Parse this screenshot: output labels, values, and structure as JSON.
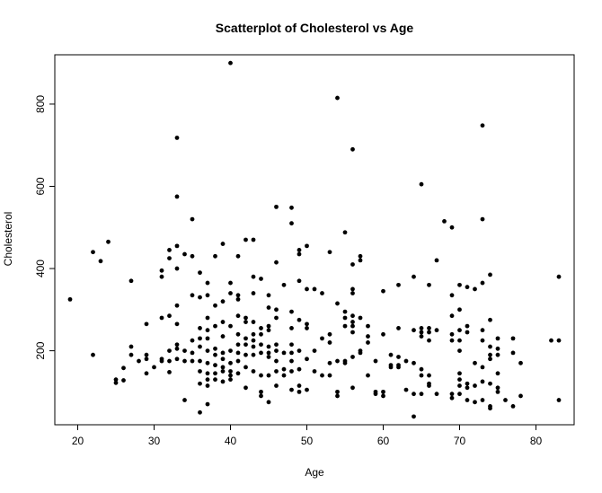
{
  "chart_data": {
    "type": "scatter",
    "title": "Scatterplot of Cholesterol vs Age",
    "xlabel": "Age",
    "ylabel": "Cholesterol",
    "xlim": [
      17,
      85
    ],
    "ylim": [
      20,
      920
    ],
    "xticks": [
      20,
      30,
      40,
      50,
      60,
      70,
      80
    ],
    "yticks": [
      200,
      400,
      600,
      800
    ],
    "grid": false,
    "legend": "none",
    "marker_color": "#000000",
    "points": [
      [
        19,
        325
      ],
      [
        22,
        440
      ],
      [
        22,
        190
      ],
      [
        23,
        418
      ],
      [
        24,
        465
      ],
      [
        25,
        130
      ],
      [
        25,
        122
      ],
      [
        26,
        128
      ],
      [
        26,
        158
      ],
      [
        27,
        370
      ],
      [
        27,
        210
      ],
      [
        27,
        190
      ],
      [
        28,
        175
      ],
      [
        29,
        145
      ],
      [
        29,
        180
      ],
      [
        29,
        265
      ],
      [
        29,
        190
      ],
      [
        30,
        160
      ],
      [
        31,
        395
      ],
      [
        31,
        380
      ],
      [
        31,
        280
      ],
      [
        31,
        180
      ],
      [
        31,
        175
      ],
      [
        32,
        445
      ],
      [
        32,
        425
      ],
      [
        32,
        285
      ],
      [
        32,
        200
      ],
      [
        32,
        175
      ],
      [
        32,
        148
      ],
      [
        33,
        718
      ],
      [
        33,
        575
      ],
      [
        33,
        455
      ],
      [
        33,
        400
      ],
      [
        33,
        310
      ],
      [
        33,
        265
      ],
      [
        33,
        215
      ],
      [
        33,
        205
      ],
      [
        33,
        180
      ],
      [
        34,
        435
      ],
      [
        34,
        200
      ],
      [
        34,
        175
      ],
      [
        34,
        80
      ],
      [
        35,
        520
      ],
      [
        35,
        430
      ],
      [
        35,
        335
      ],
      [
        35,
        225
      ],
      [
        35,
        195
      ],
      [
        35,
        175
      ],
      [
        36,
        390
      ],
      [
        36,
        330
      ],
      [
        36,
        255
      ],
      [
        36,
        230
      ],
      [
        36,
        210
      ],
      [
        36,
        175
      ],
      [
        36,
        150
      ],
      [
        36,
        120
      ],
      [
        36,
        50
      ],
      [
        37,
        365
      ],
      [
        37,
        335
      ],
      [
        37,
        280
      ],
      [
        37,
        250
      ],
      [
        37,
        230
      ],
      [
        37,
        200
      ],
      [
        37,
        170
      ],
      [
        37,
        145
      ],
      [
        37,
        130
      ],
      [
        37,
        115
      ],
      [
        37,
        70
      ],
      [
        38,
        430
      ],
      [
        38,
        310
      ],
      [
        38,
        260
      ],
      [
        38,
        205
      ],
      [
        38,
        190
      ],
      [
        38,
        165
      ],
      [
        38,
        145
      ],
      [
        38,
        130
      ],
      [
        39,
        460
      ],
      [
        39,
        320
      ],
      [
        39,
        270
      ],
      [
        39,
        235
      ],
      [
        39,
        195
      ],
      [
        39,
        180
      ],
      [
        39,
        160
      ],
      [
        39,
        150
      ],
      [
        39,
        125
      ],
      [
        40,
        900
      ],
      [
        40,
        365
      ],
      [
        40,
        340
      ],
      [
        40,
        260
      ],
      [
        40,
        200
      ],
      [
        40,
        170
      ],
      [
        40,
        150
      ],
      [
        40,
        140
      ],
      [
        40,
        130
      ],
      [
        41,
        430
      ],
      [
        41,
        335
      ],
      [
        41,
        325
      ],
      [
        41,
        285
      ],
      [
        41,
        240
      ],
      [
        41,
        215
      ],
      [
        41,
        195
      ],
      [
        41,
        175
      ],
      [
        41,
        145
      ],
      [
        42,
        470
      ],
      [
        42,
        280
      ],
      [
        42,
        270
      ],
      [
        42,
        230
      ],
      [
        42,
        215
      ],
      [
        42,
        190
      ],
      [
        42,
        160
      ],
      [
        42,
        110
      ],
      [
        43,
        470
      ],
      [
        43,
        380
      ],
      [
        43,
        340
      ],
      [
        43,
        270
      ],
      [
        43,
        240
      ],
      [
        43,
        225
      ],
      [
        43,
        210
      ],
      [
        43,
        190
      ],
      [
        43,
        150
      ],
      [
        44,
        375
      ],
      [
        44,
        255
      ],
      [
        44,
        240
      ],
      [
        44,
        215
      ],
      [
        44,
        195
      ],
      [
        44,
        140
      ],
      [
        44,
        100
      ],
      [
        44,
        90
      ],
      [
        45,
        335
      ],
      [
        45,
        305
      ],
      [
        45,
        260
      ],
      [
        45,
        250
      ],
      [
        45,
        210
      ],
      [
        45,
        195
      ],
      [
        45,
        185
      ],
      [
        45,
        140
      ],
      [
        45,
        75
      ],
      [
        46,
        550
      ],
      [
        46,
        415
      ],
      [
        46,
        300
      ],
      [
        46,
        280
      ],
      [
        46,
        215
      ],
      [
        46,
        200
      ],
      [
        46,
        175
      ],
      [
        46,
        150
      ],
      [
        46,
        115
      ],
      [
        47,
        360
      ],
      [
        47,
        195
      ],
      [
        47,
        155
      ],
      [
        47,
        140
      ],
      [
        48,
        548
      ],
      [
        48,
        510
      ],
      [
        48,
        295
      ],
      [
        48,
        255
      ],
      [
        48,
        215
      ],
      [
        48,
        195
      ],
      [
        48,
        175
      ],
      [
        48,
        150
      ],
      [
        48,
        105
      ],
      [
        49,
        445
      ],
      [
        49,
        435
      ],
      [
        49,
        370
      ],
      [
        49,
        275
      ],
      [
        49,
        200
      ],
      [
        49,
        155
      ],
      [
        49,
        115
      ],
      [
        49,
        100
      ],
      [
        50,
        455
      ],
      [
        50,
        350
      ],
      [
        50,
        265
      ],
      [
        50,
        255
      ],
      [
        50,
        180
      ],
      [
        50,
        105
      ],
      [
        51,
        350
      ],
      [
        51,
        200
      ],
      [
        51,
        150
      ],
      [
        52,
        340
      ],
      [
        52,
        230
      ],
      [
        52,
        140
      ],
      [
        53,
        440
      ],
      [
        53,
        240
      ],
      [
        53,
        220
      ],
      [
        53,
        170
      ],
      [
        53,
        140
      ],
      [
        54,
        815
      ],
      [
        54,
        315
      ],
      [
        54,
        175
      ],
      [
        54,
        100
      ],
      [
        54,
        90
      ],
      [
        55,
        488
      ],
      [
        55,
        295
      ],
      [
        55,
        280
      ],
      [
        55,
        260
      ],
      [
        55,
        175
      ],
      [
        55,
        170
      ],
      [
        56,
        690
      ],
      [
        56,
        410
      ],
      [
        56,
        350
      ],
      [
        56,
        340
      ],
      [
        56,
        285
      ],
      [
        56,
        270
      ],
      [
        56,
        260
      ],
      [
        56,
        245
      ],
      [
        56,
        185
      ],
      [
        56,
        110
      ],
      [
        57,
        430
      ],
      [
        57,
        420
      ],
      [
        57,
        280
      ],
      [
        57,
        200
      ],
      [
        57,
        195
      ],
      [
        58,
        260
      ],
      [
        58,
        235
      ],
      [
        58,
        220
      ],
      [
        58,
        140
      ],
      [
        59,
        175
      ],
      [
        59,
        100
      ],
      [
        59,
        95
      ],
      [
        60,
        345
      ],
      [
        60,
        240
      ],
      [
        60,
        100
      ],
      [
        60,
        90
      ],
      [
        61,
        190
      ],
      [
        61,
        165
      ],
      [
        61,
        160
      ],
      [
        62,
        360
      ],
      [
        62,
        255
      ],
      [
        62,
        185
      ],
      [
        62,
        165
      ],
      [
        62,
        160
      ],
      [
        63,
        175
      ],
      [
        63,
        105
      ],
      [
        64,
        380
      ],
      [
        64,
        250
      ],
      [
        64,
        170
      ],
      [
        64,
        95
      ],
      [
        64,
        40
      ],
      [
        65,
        605
      ],
      [
        65,
        255
      ],
      [
        65,
        245
      ],
      [
        65,
        235
      ],
      [
        65,
        155
      ],
      [
        65,
        140
      ],
      [
        65,
        95
      ],
      [
        66,
        360
      ],
      [
        66,
        255
      ],
      [
        66,
        245
      ],
      [
        66,
        225
      ],
      [
        66,
        140
      ],
      [
        66,
        120
      ],
      [
        66,
        115
      ],
      [
        67,
        420
      ],
      [
        67,
        250
      ],
      [
        67,
        95
      ],
      [
        68,
        515
      ],
      [
        69,
        500
      ],
      [
        69,
        335
      ],
      [
        69,
        285
      ],
      [
        69,
        240
      ],
      [
        69,
        225
      ],
      [
        69,
        95
      ],
      [
        69,
        85
      ],
      [
        70,
        360
      ],
      [
        70,
        300
      ],
      [
        70,
        250
      ],
      [
        70,
        225
      ],
      [
        70,
        200
      ],
      [
        70,
        145
      ],
      [
        70,
        130
      ],
      [
        70,
        115
      ],
      [
        70,
        95
      ],
      [
        71,
        355
      ],
      [
        71,
        260
      ],
      [
        71,
        245
      ],
      [
        71,
        120
      ],
      [
        71,
        110
      ],
      [
        71,
        80
      ],
      [
        72,
        350
      ],
      [
        72,
        170
      ],
      [
        72,
        115
      ],
      [
        72,
        75
      ],
      [
        73,
        748
      ],
      [
        73,
        520
      ],
      [
        73,
        365
      ],
      [
        73,
        250
      ],
      [
        73,
        225
      ],
      [
        73,
        160
      ],
      [
        73,
        125
      ],
      [
        73,
        80
      ],
      [
        74,
        385
      ],
      [
        74,
        275
      ],
      [
        74,
        210
      ],
      [
        74,
        190
      ],
      [
        74,
        180
      ],
      [
        74,
        120
      ],
      [
        74,
        65
      ],
      [
        74,
        60
      ],
      [
        75,
        230
      ],
      [
        75,
        205
      ],
      [
        75,
        190
      ],
      [
        75,
        145
      ],
      [
        75,
        110
      ],
      [
        75,
        100
      ],
      [
        76,
        80
      ],
      [
        77,
        230
      ],
      [
        77,
        195
      ],
      [
        77,
        65
      ],
      [
        78,
        170
      ],
      [
        78,
        90
      ],
      [
        82,
        225
      ],
      [
        83,
        380
      ],
      [
        83,
        225
      ],
      [
        83,
        80
      ]
    ]
  }
}
